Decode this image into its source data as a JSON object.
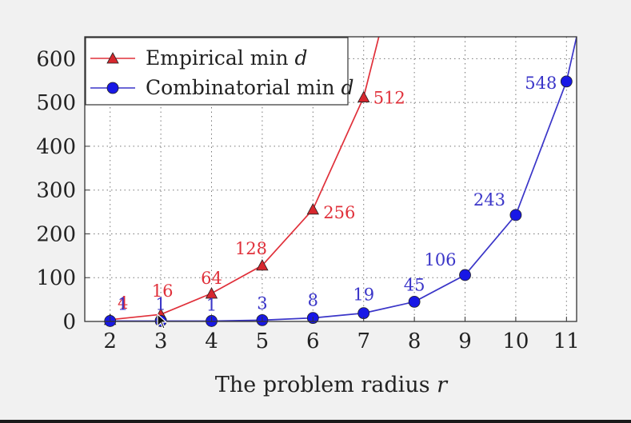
{
  "chart_data": {
    "type": "line",
    "xlabel_text": "The problem radius ",
    "xlabel_var": "r",
    "x": [
      2,
      3,
      4,
      5,
      6,
      7,
      8,
      9,
      10,
      11
    ],
    "x_ticks": [
      "2",
      "3",
      "4",
      "5",
      "6",
      "7",
      "8",
      "9",
      "10",
      "11"
    ],
    "y_ticks": [
      "0",
      "100",
      "200",
      "300",
      "400",
      "500",
      "600"
    ],
    "xlim": [
      1.5,
      11.2
    ],
    "ylim": [
      0,
      650
    ],
    "grid": true,
    "legend_position": "top-left",
    "series": [
      {
        "name": "Empirical min d",
        "legend_text": "Empirical min ",
        "legend_var": "d",
        "marker": "triangle",
        "color": "#e0303a",
        "x": [
          2,
          3,
          4,
          5,
          6,
          7,
          7.3
        ],
        "values": [
          4,
          16,
          64,
          128,
          256,
          512,
          650
        ],
        "point_labels": [
          "4",
          "16",
          "64",
          "128",
          "256",
          "512",
          ""
        ]
      },
      {
        "name": "Combinatorial min d",
        "legend_text": "Combinatorial min ",
        "legend_var": "d",
        "marker": "circle",
        "color": "#3a35c8",
        "x": [
          2,
          3,
          4,
          5,
          6,
          7,
          8,
          9,
          10,
          11,
          11.2
        ],
        "values": [
          1,
          1,
          1,
          3,
          8,
          19,
          45,
          106,
          243,
          548,
          650
        ],
        "point_labels": [
          "1",
          "1",
          "1",
          "3",
          "8",
          "19",
          "45",
          "106",
          "243",
          "548",
          ""
        ]
      }
    ]
  }
}
